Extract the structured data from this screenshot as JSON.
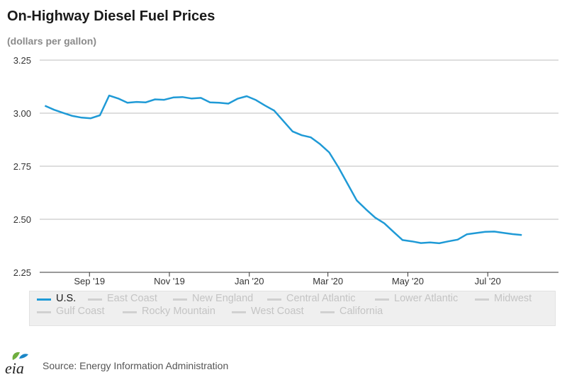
{
  "header": {
    "title": "On-Highway Diesel Fuel Prices",
    "subtitle": "(dollars per gallon)"
  },
  "legend": {
    "items": [
      {
        "label": "U.S.",
        "active": true
      },
      {
        "label": "East Coast",
        "active": false
      },
      {
        "label": "New England",
        "active": false
      },
      {
        "label": "Central Atlantic",
        "active": false
      },
      {
        "label": "Lower Atlantic",
        "active": false
      },
      {
        "label": "Midwest",
        "active": false
      },
      {
        "label": "Gulf Coast",
        "active": false
      },
      {
        "label": "Rocky Mountain",
        "active": false
      },
      {
        "label": "West Coast",
        "active": false
      },
      {
        "label": "California",
        "active": false
      }
    ]
  },
  "footer": {
    "source": "Source: Energy Information Administration",
    "logo_text": "eia"
  },
  "colors": {
    "series": "#1f9ad6",
    "inactive_swatch": "#d0d0d0",
    "gridline": "#bdbdbd",
    "logo_leaf": "#6fae3f",
    "logo_blue": "#1a86c7"
  },
  "chart_data": {
    "type": "line",
    "title": "On-Highway Diesel Fuel Prices",
    "ylabel": "(dollars per gallon)",
    "ylim": [
      2.25,
      3.25
    ],
    "yticks": [
      "3.25",
      "3.00",
      "2.75",
      "2.50",
      "2.25"
    ],
    "ytick_values": [
      3.25,
      3.0,
      2.75,
      2.5,
      2.25
    ],
    "xlim": [
      "2019-07-25",
      "2020-08-24"
    ],
    "xticks": [
      {
        "label": "Sep '19",
        "date": "2019-09-01"
      },
      {
        "label": "Nov '19",
        "date": "2019-11-01"
      },
      {
        "label": "Jan '20",
        "date": "2020-01-01"
      },
      {
        "label": "Mar '20",
        "date": "2020-03-01"
      },
      {
        "label": "May '20",
        "date": "2020-05-01"
      },
      {
        "label": "Jul '20",
        "date": "2020-07-01"
      }
    ],
    "grid": true,
    "legend_position": "bottom",
    "series": [
      {
        "name": "U.S.",
        "points": [
          [
            "2019-07-29",
            3.035
          ],
          [
            "2019-08-05",
            3.016
          ],
          [
            "2019-08-12",
            3.001
          ],
          [
            "2019-08-19",
            2.987
          ],
          [
            "2019-08-26",
            2.979
          ],
          [
            "2019-09-02",
            2.976
          ],
          [
            "2019-09-09",
            2.99
          ],
          [
            "2019-09-16",
            3.083
          ],
          [
            "2019-09-23",
            3.069
          ],
          [
            "2019-09-30",
            3.049
          ],
          [
            "2019-10-07",
            3.053
          ],
          [
            "2019-10-14",
            3.051
          ],
          [
            "2019-10-21",
            3.065
          ],
          [
            "2019-10-28",
            3.063
          ],
          [
            "2019-11-04",
            3.074
          ],
          [
            "2019-11-11",
            3.076
          ],
          [
            "2019-11-18",
            3.069
          ],
          [
            "2019-11-25",
            3.072
          ],
          [
            "2019-12-02",
            3.051
          ],
          [
            "2019-12-09",
            3.049
          ],
          [
            "2019-12-16",
            3.045
          ],
          [
            "2019-12-23",
            3.068
          ],
          [
            "2019-12-30",
            3.08
          ],
          [
            "2020-01-06",
            3.062
          ],
          [
            "2020-01-13",
            3.036
          ],
          [
            "2020-01-20",
            3.012
          ],
          [
            "2020-01-27",
            2.963
          ],
          [
            "2020-02-03",
            2.914
          ],
          [
            "2020-02-10",
            2.896
          ],
          [
            "2020-02-17",
            2.886
          ],
          [
            "2020-02-24",
            2.854
          ],
          [
            "2020-03-02",
            2.815
          ],
          [
            "2020-03-09",
            2.745
          ],
          [
            "2020-03-16",
            2.667
          ],
          [
            "2020-03-23",
            2.589
          ],
          [
            "2020-03-30",
            2.547
          ],
          [
            "2020-04-06",
            2.508
          ],
          [
            "2020-04-13",
            2.481
          ],
          [
            "2020-04-20",
            2.441
          ],
          [
            "2020-04-27",
            2.402
          ],
          [
            "2020-05-04",
            2.396
          ],
          [
            "2020-05-11",
            2.388
          ],
          [
            "2020-05-18",
            2.391
          ],
          [
            "2020-05-25",
            2.387
          ],
          [
            "2020-06-01",
            2.396
          ],
          [
            "2020-06-08",
            2.404
          ],
          [
            "2020-06-15",
            2.429
          ],
          [
            "2020-06-22",
            2.435
          ],
          [
            "2020-06-29",
            2.441
          ],
          [
            "2020-07-06",
            2.442
          ],
          [
            "2020-07-13",
            2.436
          ],
          [
            "2020-07-20",
            2.43
          ],
          [
            "2020-07-27",
            2.426
          ]
        ]
      }
    ]
  }
}
